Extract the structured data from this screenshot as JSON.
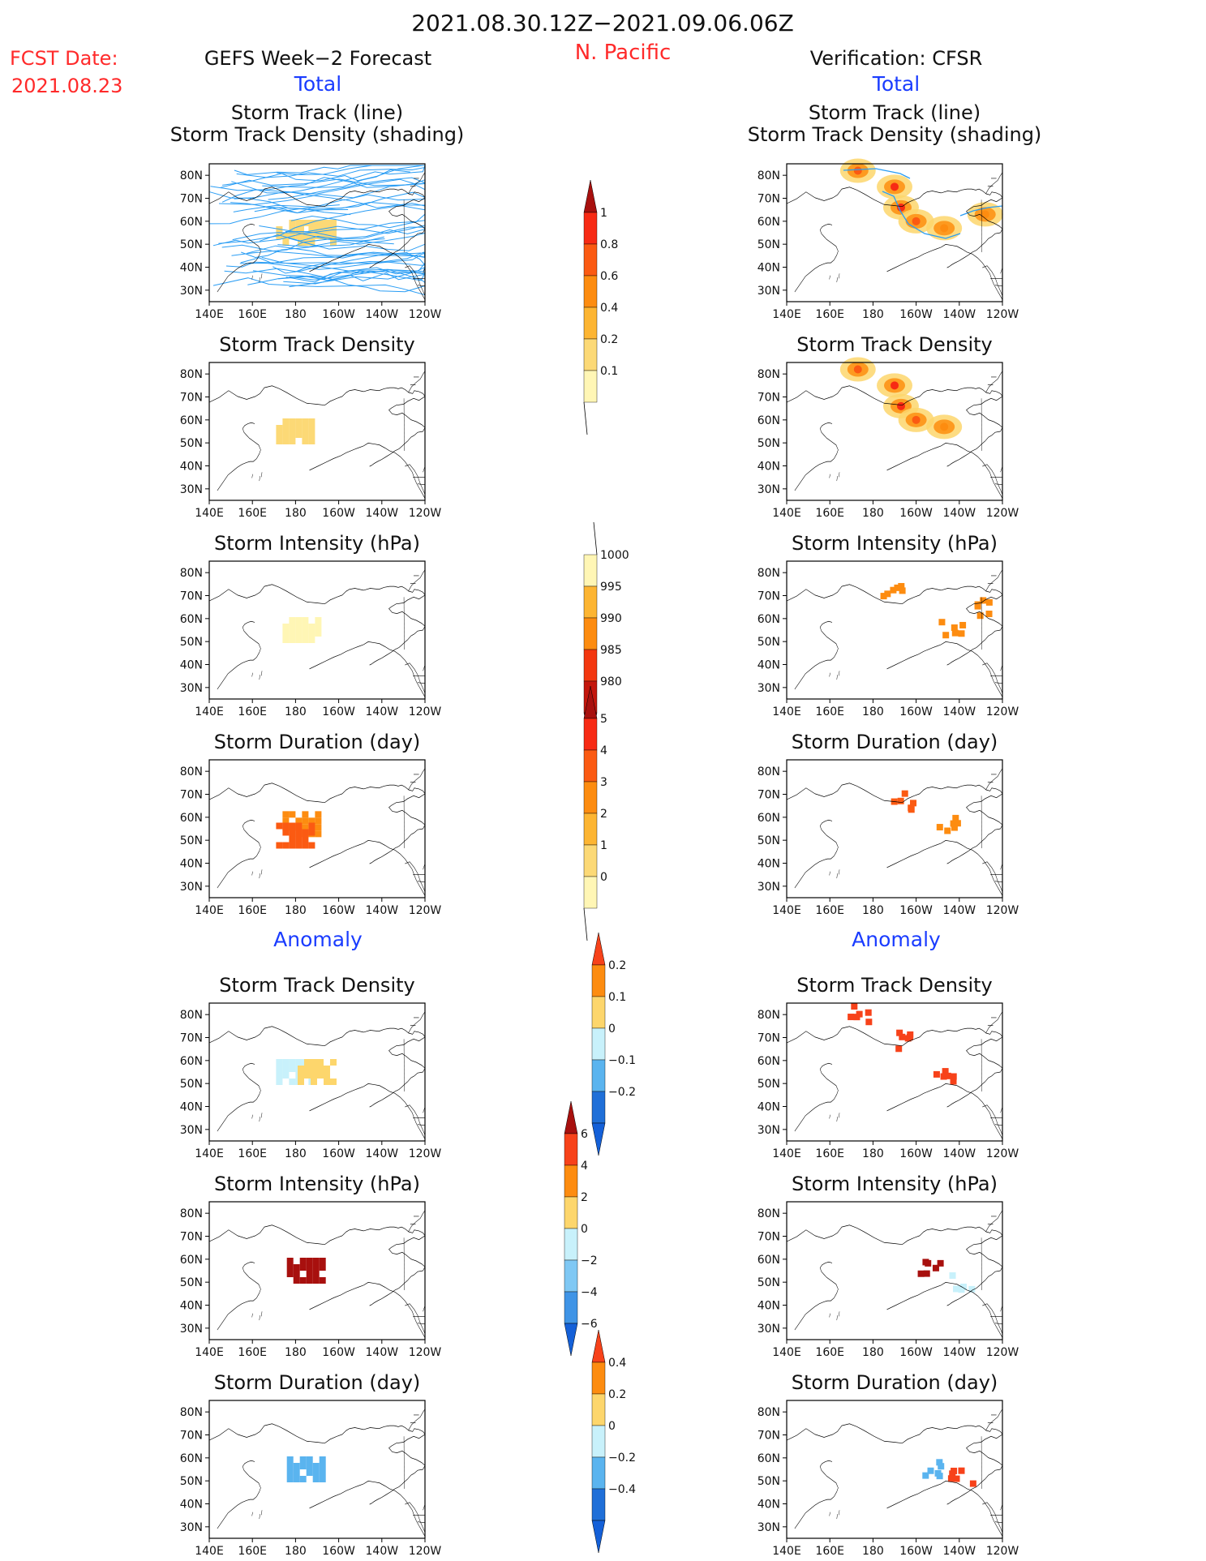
{
  "header": {
    "date_range": "2021.08.30.12Z−2021.09.06.06Z",
    "region": "N. Pacific",
    "fcst_label": "FCST Date:",
    "fcst_date": "2021.08.23",
    "forecast_title": "GEFS Week−2 Forecast",
    "verification_title": "Verification: CFSR",
    "total_label": "Total",
    "anomaly_label": "Anomaly"
  },
  "colors": {
    "title_red": "#ff2a2a",
    "title_blue": "#1a3cff",
    "track_line": "#2a9df4",
    "coast": "#000000"
  },
  "map_axes": {
    "lat_ticks": [
      "80N",
      "70N",
      "60N",
      "50N",
      "40N",
      "30N"
    ],
    "lon_ticks": [
      "140E",
      "160E",
      "180",
      "160W",
      "140W",
      "120W"
    ]
  },
  "panel_titles": {
    "track_line": "Storm Track (line)",
    "track_shading": "Storm Track Density (shading)",
    "density": "Storm Track Density",
    "intensity": "Storm Intensity (hPa)",
    "duration": "Storm Duration (day)"
  },
  "colorbars": [
    {
      "id": "cb-density",
      "labels": [
        "1",
        "0.8",
        "0.6",
        "0.4",
        "0.2",
        "0.1"
      ],
      "colors": [
        "#f72a14",
        "#fb5a12",
        "#fd8c10",
        "#fdb532",
        "#fcd976",
        "#fff6b5"
      ],
      "top_arrow": "#a8100e",
      "bottom_arrow": "none"
    },
    {
      "id": "cb-intensity",
      "labels": [
        "1000",
        "995",
        "990",
        "985",
        "980"
      ],
      "colors": [
        "#fff6b5",
        "#fdb532",
        "#fd8c10",
        "#f3370f",
        "#c4160c"
      ],
      "top_arrow": "none",
      "bottom_arrow": "#8b0b08"
    },
    {
      "id": "cb-duration",
      "labels": [
        "5",
        "4",
        "3",
        "2",
        "1",
        "0"
      ],
      "colors": [
        "#f72a14",
        "#fb5a12",
        "#fd8c10",
        "#fdb532",
        "#fcd976",
        "#fff6b5"
      ],
      "top_arrow": "#a8100e",
      "bottom_arrow": "none"
    },
    {
      "id": "cb-anom-density",
      "labels": [
        "0.2",
        "0.1",
        "0",
        "−0.1",
        "−0.2"
      ],
      "colors": [
        "#fd8c10",
        "#fdd66c",
        "#c8f1fb",
        "#5ab4ef",
        "#1f6fd8"
      ],
      "top_arrow": "#f7421a",
      "bottom_arrow": "#1460d8"
    },
    {
      "id": "cb-anom-intensity",
      "labels": [
        "6",
        "4",
        "2",
        "0",
        "−2",
        "−4",
        "−6"
      ],
      "colors": [
        "#f7421a",
        "#fd8c10",
        "#fdd66c",
        "#c8f1fb",
        "#7fc8f4",
        "#3f94e6"
      ],
      "top_arrow": "#a8100e",
      "bottom_arrow": "#1460d8"
    },
    {
      "id": "cb-anom-duration",
      "labels": [
        "0.4",
        "0.2",
        "0",
        "−0.2",
        "−0.4"
      ],
      "colors": [
        "#fd8c10",
        "#fdd66c",
        "#c8f1fb",
        "#5ab4ef",
        "#1f6fd8"
      ],
      "top_arrow": "#f7421a",
      "bottom_arrow": "#1460d8"
    }
  ],
  "chart_data": [
    {
      "type": "heatmap",
      "panel": "forecast-track",
      "title": "Storm Track (line)",
      "subtitle": "Storm Track Density (shading)",
      "lon_range": [
        "140E",
        "120W"
      ],
      "lat_range": [
        "25N",
        "85N"
      ],
      "note_tracks": "many storm tracks 40N-85N",
      "cells": [
        {
          "lon": 180,
          "lat": 55,
          "value": 0.15
        },
        {
          "lon": 190,
          "lat": 55,
          "value": 0.15
        }
      ]
    },
    {
      "type": "heatmap",
      "panel": "verify-track",
      "title": "Storm Track (line)",
      "subtitle": "Storm Track Density (shading)",
      "cells": [
        {
          "lon": 173,
          "lat": 82,
          "value": 0.6
        },
        {
          "lon": 190,
          "lat": 75,
          "value": 0.8
        },
        {
          "lon": 193,
          "lat": 66,
          "value": 0.9
        },
        {
          "lon": 200,
          "lat": 60,
          "value": 0.6
        },
        {
          "lon": 213,
          "lat": 57,
          "value": 0.5
        },
        {
          "lon": 232,
          "lat": 63,
          "value": 0.4
        }
      ]
    },
    {
      "type": "heatmap",
      "panel": "forecast-density",
      "title": "Storm Track Density",
      "cells": [
        {
          "lon": 180,
          "lat": 55,
          "value": 0.15
        }
      ]
    },
    {
      "type": "heatmap",
      "panel": "verify-density",
      "title": "Storm Track Density",
      "cells": [
        {
          "lon": 173,
          "lat": 82,
          "value": 0.6
        },
        {
          "lon": 190,
          "lat": 75,
          "value": 0.8
        },
        {
          "lon": 193,
          "lat": 66,
          "value": 0.9
        },
        {
          "lon": 200,
          "lat": 60,
          "value": 0.6
        },
        {
          "lon": 213,
          "lat": 57,
          "value": 0.5
        }
      ]
    },
    {
      "type": "heatmap",
      "panel": "forecast-intensity",
      "title": "Storm Intensity (hPa)",
      "cells": [
        {
          "lon": 183,
          "lat": 55,
          "value": 1000
        }
      ]
    },
    {
      "type": "heatmap",
      "panel": "verify-intensity",
      "title": "Storm Intensity (hPa)",
      "cells": [
        {
          "lon": 188,
          "lat": 75,
          "value": 992
        },
        {
          "lon": 215,
          "lat": 58,
          "value": 990
        },
        {
          "lon": 232,
          "lat": 66,
          "value": 992
        }
      ]
    },
    {
      "type": "heatmap",
      "panel": "forecast-duration",
      "title": "Storm Duration (day)",
      "cells": [
        {
          "lon": 183,
          "lat": 57,
          "value": 2.5
        },
        {
          "lon": 180,
          "lat": 52,
          "value": 3.5
        }
      ]
    },
    {
      "type": "heatmap",
      "panel": "verify-duration",
      "title": "Storm Duration (day)",
      "cells": [
        {
          "lon": 193,
          "lat": 68,
          "value": 3.5
        },
        {
          "lon": 213,
          "lat": 58,
          "value": 2.5
        }
      ]
    },
    {
      "type": "heatmap",
      "panel": "forecast-anom-density",
      "title": "Storm Track Density",
      "cells": [
        {
          "lon": 180,
          "lat": 55,
          "value": -0.05
        },
        {
          "lon": 190,
          "lat": 55,
          "value": 0.05
        }
      ]
    },
    {
      "type": "heatmap",
      "panel": "verify-anom-density",
      "title": "Storm Track Density",
      "cells": [
        {
          "lon": 173,
          "lat": 82,
          "value": 0.2
        },
        {
          "lon": 193,
          "lat": 70,
          "value": 0.2
        },
        {
          "lon": 213,
          "lat": 55,
          "value": 0.2
        }
      ]
    },
    {
      "type": "heatmap",
      "panel": "forecast-anom-intensity",
      "title": "Storm Intensity (hPa)",
      "cells": [
        {
          "lon": 185,
          "lat": 55,
          "value": 6
        }
      ]
    },
    {
      "type": "heatmap",
      "panel": "verify-anom-intensity",
      "title": "Storm Intensity (hPa)",
      "cells": [
        {
          "lon": 205,
          "lat": 57,
          "value": 6
        },
        {
          "lon": 220,
          "lat": 52,
          "value": -1
        }
      ]
    },
    {
      "type": "heatmap",
      "panel": "forecast-anom-duration",
      "title": "Storm Duration (day)",
      "cells": [
        {
          "lon": 185,
          "lat": 55,
          "value": -0.4
        }
      ]
    },
    {
      "type": "heatmap",
      "panel": "verify-anom-duration",
      "title": "Storm Duration (day)",
      "cells": [
        {
          "lon": 205,
          "lat": 57,
          "value": -0.4
        },
        {
          "lon": 220,
          "lat": 52,
          "value": 0.4
        }
      ]
    }
  ]
}
